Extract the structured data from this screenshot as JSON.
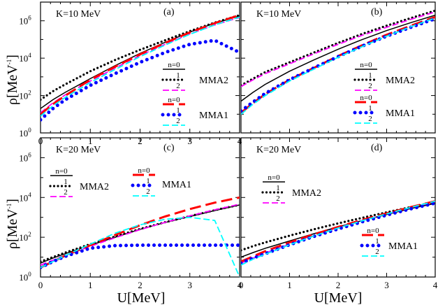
{
  "figure": {
    "ylabel_main": "ρ[MeV",
    "ylabel_sup": "-1",
    "ylabel_close": "]",
    "xlabel": "U[MeV]"
  },
  "legend": {
    "group_mma2": "MMA2",
    "group_mma1": "MMA1",
    "n0": "n=0",
    "n1": "1",
    "n2": "2"
  },
  "styles": {
    "MMA2": {
      "n=0": {
        "color": "#000000",
        "dash": "solid"
      },
      "1": {
        "color": "#000000",
        "dash": "dot"
      },
      "2": {
        "color": "#ff00ff",
        "dash": "dash"
      }
    },
    "MMA1": {
      "n=0": {
        "color": "#ff0000",
        "dash": "longdash"
      },
      "1": {
        "color": "#0000ff",
        "dash": "bigdot"
      },
      "2": {
        "color": "#00ffff",
        "dash": "dash"
      }
    }
  },
  "chart_data": [
    {
      "type": "line",
      "panel": "(a)",
      "annotation": "K=10 MeV",
      "xlabel": "U[MeV]",
      "ylabel": "ρ[MeV^-1]",
      "xlim": [
        0,
        4
      ],
      "ylim_log10": [
        0,
        7
      ],
      "x_ticks": [
        "0",
        "1",
        "2",
        "3",
        "4"
      ],
      "y_ticks": [
        {
          "base": "10",
          "exp": "0"
        },
        {
          "base": "10",
          "exp": "2"
        },
        {
          "base": "10",
          "exp": "4"
        },
        {
          "base": "10",
          "exp": "6"
        }
      ],
      "x": [
        0,
        0.25,
        0.5,
        1,
        1.5,
        2,
        2.5,
        3,
        3.5,
        4
      ],
      "series": [
        {
          "group": "MMA2",
          "n": "n=0",
          "values": [
            20,
            60,
            150,
            800,
            4000,
            18000,
            70000,
            250000,
            750000,
            1800000
          ]
        },
        {
          "group": "MMA2",
          "n": "1",
          "values": [
            60,
            170,
            400,
            2000,
            8000,
            28000,
            90000,
            280000,
            800000,
            2000000
          ]
        },
        {
          "group": "MMA2",
          "n": "2",
          "values": [
            12,
            40,
            110,
            600,
            3000,
            14000,
            55000,
            200000,
            600000,
            1500000
          ]
        },
        {
          "group": "MMA1",
          "n": "n=0",
          "values": [
            10,
            35,
            100,
            700,
            3500,
            16000,
            65000,
            240000,
            750000,
            2000000
          ]
        },
        {
          "group": "MMA1",
          "n": "1",
          "values": [
            5,
            20,
            60,
            350,
            1500,
            6000,
            20000,
            55000,
            90000,
            20000
          ]
        },
        {
          "group": "MMA1",
          "n": "2",
          "values": [
            8,
            28,
            80,
            500,
            2500,
            12000,
            50000,
            190000,
            600000,
            1600000
          ]
        }
      ]
    },
    {
      "type": "line",
      "panel": "(b)",
      "annotation": "K=10 MeV",
      "xlabel": "",
      "ylabel": "",
      "xlim": [
        0,
        4
      ],
      "ylim_log10": [
        0,
        7
      ],
      "x_ticks": [],
      "y_ticks": [],
      "x": [
        0,
        0.25,
        0.5,
        1,
        1.5,
        2,
        2.5,
        3,
        3.5,
        4
      ],
      "series": [
        {
          "group": "MMA2",
          "n": "n=0",
          "values": [
            50,
            150,
            400,
            2000,
            8000,
            30000,
            100000,
            300000,
            800000,
            2000000
          ]
        },
        {
          "group": "MMA2",
          "n": "1",
          "values": [
            350,
            800,
            1800,
            6000,
            20000,
            65000,
            200000,
            550000,
            1400000,
            3500000
          ]
        },
        {
          "group": "MMA2",
          "n": "2",
          "values": [
            300,
            700,
            1500,
            5000,
            17000,
            55000,
            170000,
            450000,
            1200000,
            3000000
          ]
        },
        {
          "group": "MMA1",
          "n": "n=0",
          "values": [
            12,
            40,
            120,
            700,
            3000,
            13000,
            50000,
            180000,
            550000,
            1600000
          ]
        },
        {
          "group": "MMA1",
          "n": "1",
          "values": [
            15,
            45,
            130,
            700,
            3000,
            12000,
            45000,
            150000,
            450000,
            1300000
          ]
        },
        {
          "group": "MMA1",
          "n": "2",
          "values": [
            10,
            35,
            100,
            600,
            2600,
            11000,
            42000,
            150000,
            480000,
            1400000
          ]
        }
      ]
    },
    {
      "type": "line",
      "panel": "(c)",
      "annotation": "K=20 MeV",
      "xlabel": "U[MeV]",
      "ylabel": "ρ[MeV^-1]",
      "xlim": [
        0,
        4
      ],
      "ylim_log10": [
        0,
        7
      ],
      "x_ticks": [
        "0",
        "1",
        "2",
        "3",
        "4"
      ],
      "y_ticks": [
        {
          "base": "10",
          "exp": "0"
        },
        {
          "base": "10",
          "exp": "2"
        },
        {
          "base": "10",
          "exp": "4"
        },
        {
          "base": "10",
          "exp": "6"
        }
      ],
      "x": [
        0,
        0.25,
        0.5,
        1,
        1.5,
        2,
        2.5,
        3,
        3.5,
        4
      ],
      "series": [
        {
          "group": "MMA2",
          "n": "n=0",
          "values": [
            5,
            9,
            15,
            40,
            100,
            250,
            550,
            1100,
            2200,
            4200
          ]
        },
        {
          "group": "MMA2",
          "n": "1",
          "values": [
            6,
            10,
            17,
            45,
            110,
            260,
            570,
            1150,
            2300,
            4300
          ]
        },
        {
          "group": "MMA2",
          "n": "2",
          "values": [
            4,
            7,
            12,
            35,
            95,
            240,
            560,
            1200,
            2400,
            4600
          ]
        },
        {
          "group": "MMA1",
          "n": "n=0",
          "values": [
            3,
            6,
            12,
            40,
            130,
            400,
            1100,
            2600,
            5500,
            10000
          ]
        },
        {
          "group": "MMA1",
          "n": "1",
          "values": [
            3,
            6,
            11,
            28,
            38,
            40,
            40,
            40,
            40,
            40
          ]
        },
        {
          "group": "MMA1",
          "n": "2",
          "values": [
            3,
            6,
            12,
            45,
            160,
            420,
            800,
            1000,
            700,
            1
          ]
        }
      ]
    },
    {
      "type": "line",
      "panel": "(d)",
      "annotation": "K=20 MeV",
      "xlabel": "U[MeV]",
      "ylabel": "",
      "xlim": [
        0,
        4
      ],
      "ylim_log10": [
        0,
        7
      ],
      "x_ticks": [
        "0",
        "1",
        "2",
        "3",
        "4"
      ],
      "y_ticks": [],
      "x": [
        0,
        0.25,
        0.5,
        1,
        1.5,
        2,
        2.5,
        3,
        3.5,
        4
      ],
      "series": [
        {
          "group": "MMA2",
          "n": "n=0",
          "values": [
            10,
            17,
            28,
            65,
            150,
            330,
            700,
            1400,
            2800,
            5000
          ]
        },
        {
          "group": "MMA2",
          "n": "1",
          "values": [
            22,
            36,
            55,
            120,
            250,
            500,
            950,
            1800,
            3300,
            6000
          ]
        },
        {
          "group": "MMA2",
          "n": "2",
          "values": [
            5,
            9,
            16,
            45,
            120,
            300,
            700,
            1500,
            3100,
            6000
          ]
        },
        {
          "group": "MMA1",
          "n": "n=0",
          "values": [
            6,
            11,
            20,
            55,
            140,
            330,
            750,
            1600,
            3300,
            6500
          ]
        },
        {
          "group": "MMA1",
          "n": "1",
          "values": [
            5,
            9,
            15,
            42,
            110,
            260,
            600,
            1300,
            2700,
            5200
          ]
        },
        {
          "group": "MMA1",
          "n": "2",
          "values": [
            4,
            8,
            14,
            42,
            115,
            290,
            680,
            1500,
            3200,
            6500
          ]
        }
      ]
    }
  ]
}
